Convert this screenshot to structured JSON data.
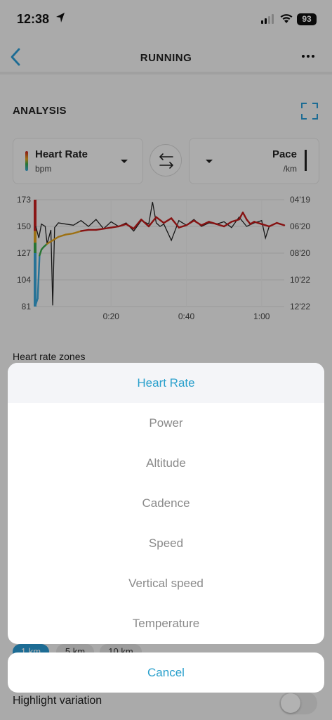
{
  "status_bar": {
    "time": "12:38",
    "battery": "93"
  },
  "nav": {
    "title": "RUNNING"
  },
  "analysis": {
    "title": "ANALYSIS",
    "left_selector": {
      "label": "Heart Rate",
      "unit": "bpm"
    },
    "right_selector": {
      "label": "Pace",
      "unit": "/km"
    }
  },
  "chart_data": {
    "type": "line",
    "y_left_ticks": [
      "173",
      "150",
      "127",
      "104",
      "81"
    ],
    "y_right_ticks": [
      "04'19",
      "06'20",
      "08'20",
      "10'22",
      "12'22"
    ],
    "x_ticks": [
      "0:20",
      "0:40",
      "1:00"
    ],
    "ylim_left": [
      81,
      173
    ],
    "grid": true,
    "series": [
      {
        "metric": "heart_rate",
        "unit": "bpm",
        "x_minutes": [
          0.0,
          0.5,
          1.0,
          1.5,
          2.0,
          3.0,
          4.0,
          5.0,
          6.0,
          8.0,
          10.0,
          12.0,
          14.0,
          16.0,
          18.0,
          20.0,
          22.0,
          24.0,
          26.0,
          28.0,
          30.0,
          32.0,
          34.0,
          36.0,
          38.0,
          40.0,
          42.0,
          44.0,
          46.0,
          48.0,
          50.0,
          52.0,
          54.0,
          55.0,
          56.0,
          57.0,
          58.0,
          60.0,
          62.0,
          64.0,
          66.0
        ],
        "values": [
          83,
          88,
          125,
          130,
          132,
          135,
          137,
          139,
          141,
          143,
          144,
          146,
          147,
          147,
          148,
          149,
          150,
          152,
          148,
          156,
          150,
          158,
          153,
          157,
          149,
          151,
          155,
          151,
          154,
          152,
          150,
          154,
          156,
          162,
          156,
          152,
          154,
          152,
          150,
          153,
          151
        ]
      },
      {
        "metric": "pace",
        "unit": "/km",
        "x_minutes": [
          0.0,
          0.8,
          1.5,
          2.0,
          2.5,
          3.0,
          4.0,
          4.5,
          5.0,
          6.0,
          8.0,
          10.0,
          12.0,
          14.0,
          16.0,
          18.0,
          20.0,
          22.0,
          24.0,
          26.0,
          28.0,
          30.0,
          31.0,
          32.0,
          33.0,
          34.0,
          36.0,
          38.0,
          40.0,
          42.0,
          44.0,
          46.0,
          48.0,
          50.0,
          52.0,
          54.0,
          56.0,
          58.0,
          60.0,
          61.0,
          62.0,
          64.0,
          66.0
        ],
        "values": [
          150,
          140,
          152,
          151,
          150,
          135,
          147,
          82,
          149,
          153,
          152,
          151,
          155,
          150,
          156,
          148,
          154,
          150,
          153,
          146,
          155,
          152,
          171,
          153,
          150,
          152,
          138,
          155,
          151,
          156,
          150,
          153,
          152,
          154,
          149,
          158,
          150,
          153,
          155,
          140,
          150,
          153,
          151
        ]
      }
    ],
    "zone_colors": [
      "#c62020",
      "#e1a21d",
      "#3aa84a",
      "#38a5d8"
    ]
  },
  "zones": {
    "label": "Heart rate zones"
  },
  "splits": {
    "pills": [
      "1 km",
      "5 km",
      "10 km"
    ]
  },
  "highlight": {
    "label": "Highlight variation"
  },
  "action_sheet": {
    "options": [
      "Heart Rate",
      "Power",
      "Altitude",
      "Cadence",
      "Speed",
      "Vertical speed",
      "Temperature"
    ],
    "selected": "Heart Rate",
    "cancel": "Cancel"
  },
  "colors": {
    "accent": "#2aa0cc",
    "hr_line": "#c01a1a",
    "pace_line": "#222222"
  }
}
